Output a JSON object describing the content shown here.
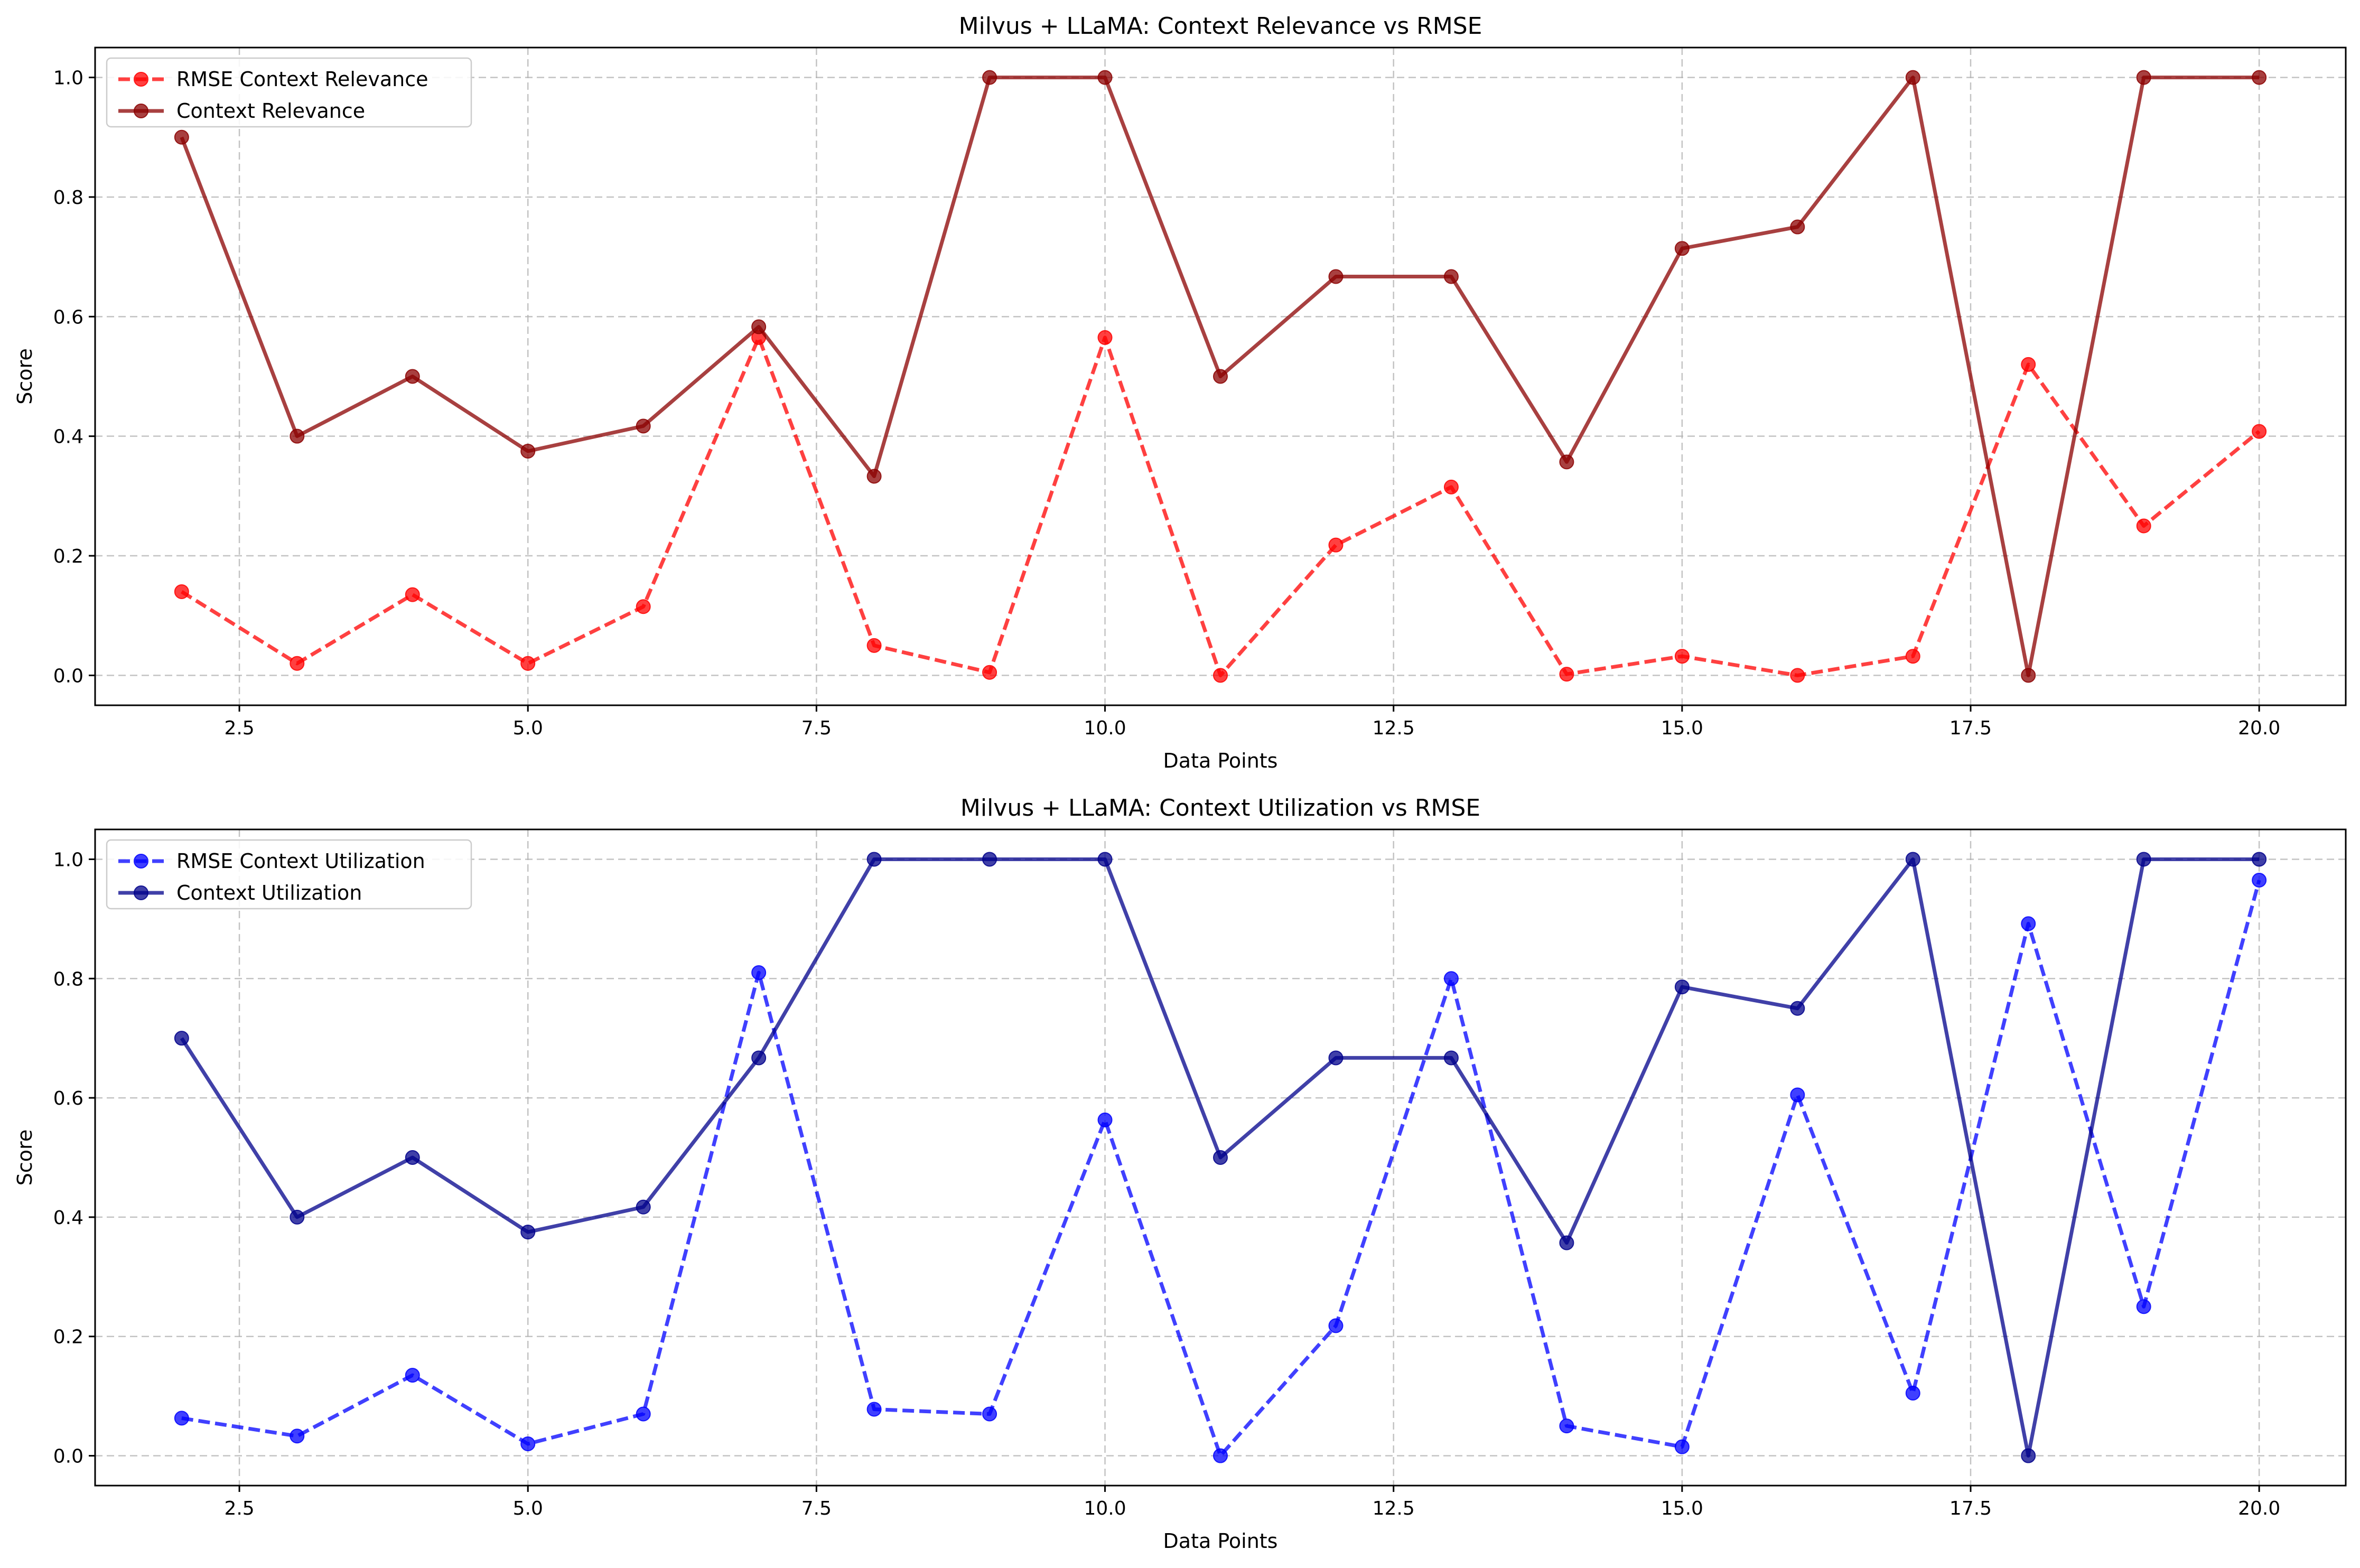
{
  "chart_data": [
    {
      "type": "line",
      "title": "Milvus + LLaMA: Context Relevance vs RMSE",
      "xlabel": "Data Points",
      "ylabel": "Score",
      "xlim": [
        1.25,
        20.75
      ],
      "ylim": [
        -0.05,
        1.05
      ],
      "xticks": [
        2.5,
        5.0,
        7.5,
        10.0,
        12.5,
        15.0,
        17.5,
        20.0
      ],
      "xtick_labels": [
        "2.5",
        "5.0",
        "7.5",
        "10.0",
        "12.5",
        "15.0",
        "17.5",
        "20.0"
      ],
      "yticks": [
        0.0,
        0.2,
        0.4,
        0.6,
        0.8,
        1.0
      ],
      "ytick_labels": [
        "0.0",
        "0.2",
        "0.4",
        "0.6",
        "0.8",
        "1.0"
      ],
      "grid": true,
      "legend_position": "top-left",
      "x": [
        2,
        3,
        4,
        5,
        6,
        7,
        8,
        9,
        10,
        11,
        12,
        13,
        14,
        15,
        16,
        17,
        18,
        19,
        20
      ],
      "series": [
        {
          "name": "RMSE Context Relevance",
          "color": "#ff0000",
          "line_style": "dashed",
          "marker": "circle",
          "values": [
            0.14,
            0.02,
            0.135,
            0.02,
            0.115,
            0.565,
            0.05,
            0.005,
            0.565,
            0.0,
            0.218,
            0.315,
            0.002,
            0.032,
            0.0,
            0.032,
            0.52,
            0.25,
            0.408
          ]
        },
        {
          "name": "Context Relevance",
          "color": "#8b0000",
          "line_style": "solid",
          "marker": "circle",
          "values": [
            0.9,
            0.4,
            0.5,
            0.375,
            0.417,
            0.583,
            0.333,
            1.0,
            1.0,
            0.5,
            0.667,
            0.667,
            0.357,
            0.714,
            0.75,
            1.0,
            0.0,
            1.0,
            1.0
          ]
        }
      ]
    },
    {
      "type": "line",
      "title": "Milvus + LLaMA: Context Utilization vs RMSE",
      "xlabel": "Data Points",
      "ylabel": "Score",
      "xlim": [
        1.25,
        20.75
      ],
      "ylim": [
        -0.05,
        1.05
      ],
      "xticks": [
        2.5,
        5.0,
        7.5,
        10.0,
        12.5,
        15.0,
        17.5,
        20.0
      ],
      "xtick_labels": [
        "2.5",
        "5.0",
        "7.5",
        "10.0",
        "12.5",
        "15.0",
        "17.5",
        "20.0"
      ],
      "yticks": [
        0.0,
        0.2,
        0.4,
        0.6,
        0.8,
        1.0
      ],
      "ytick_labels": [
        "0.0",
        "0.2",
        "0.4",
        "0.6",
        "0.8",
        "1.0"
      ],
      "grid": true,
      "legend_position": "top-left",
      "x": [
        2,
        3,
        4,
        5,
        6,
        7,
        8,
        9,
        10,
        11,
        12,
        13,
        14,
        15,
        16,
        17,
        18,
        19,
        20
      ],
      "series": [
        {
          "name": "RMSE Context Utilization",
          "color": "#0000ff",
          "line_style": "dashed",
          "marker": "circle",
          "values": [
            0.063,
            0.033,
            0.135,
            0.02,
            0.07,
            0.81,
            0.078,
            0.07,
            0.563,
            0.0,
            0.218,
            0.8,
            0.05,
            0.015,
            0.605,
            0.105,
            0.892,
            0.25,
            0.965
          ]
        },
        {
          "name": "Context Utilization",
          "color": "#00008b",
          "line_style": "solid",
          "marker": "circle",
          "values": [
            0.7,
            0.4,
            0.5,
            0.375,
            0.417,
            0.667,
            1.0,
            1.0,
            1.0,
            0.5,
            0.667,
            0.667,
            0.357,
            0.786,
            0.75,
            1.0,
            0.0,
            1.0,
            1.0
          ]
        }
      ]
    }
  ]
}
